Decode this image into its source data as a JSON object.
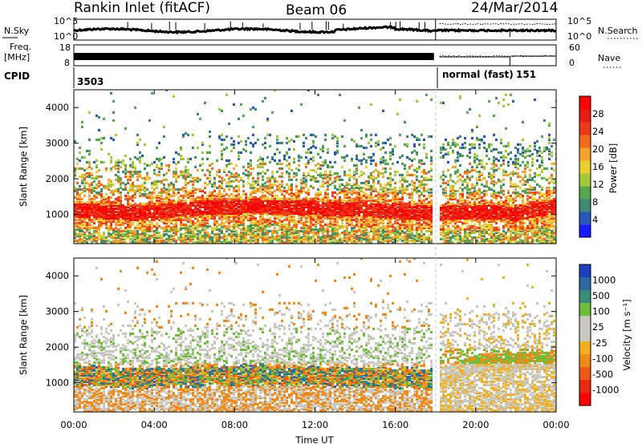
{
  "chart_data": {
    "type": "heatmap",
    "title": {
      "left": "Rankin Inlet (fitACF)",
      "center": "Beam 06",
      "right": "24/Mar/2014"
    },
    "xlabel": "Time UT",
    "xticks": [
      "00:00",
      "04:00",
      "08:00",
      "12:00",
      "16:00",
      "20:00",
      "00:00"
    ],
    "xrange_hours": [
      0,
      24
    ],
    "header": {
      "nsky": {
        "label": "N.Sky",
        "ticks": [
          "10^5",
          "10^0"
        ]
      },
      "nsearch": {
        "label": "N.Search",
        "ticks": [
          "10^5",
          "10^0"
        ]
      },
      "freq": {
        "label": "Freq.",
        "unit": "[MHz]",
        "ticks": [
          "18",
          "8"
        ]
      },
      "nave": {
        "label": "Nave",
        "ticks": [
          "60",
          "0"
        ]
      },
      "cpid": {
        "label": "CPID",
        "segments": [
          "3503",
          "normal (fast)",
          "151"
        ],
        "change_hour": 18.0
      }
    },
    "panels": [
      {
        "name": "power",
        "ylabel": "Slant Range [km]",
        "yticks": [
          "1000",
          "2000",
          "3000",
          "4000"
        ],
        "ylim_km": [
          180,
          4500
        ],
        "colorbar": {
          "label": "Power [dB]",
          "ticks": [
            "4",
            "8",
            "12",
            "16",
            "20",
            "24",
            "28"
          ],
          "colors": [
            "#1a1aff",
            "#2a58b8",
            "#3f8a72",
            "#55a84e",
            "#a5c83a",
            "#e7d030",
            "#f5a32a",
            "#f36a1e",
            "#ee3a16",
            "#e61c10",
            "#ff0000"
          ]
        }
      },
      {
        "name": "velocity",
        "ylabel": "Slant Range [km]",
        "yticks": [
          "1000",
          "2000",
          "3000",
          "4000"
        ],
        "ylim_km": [
          180,
          4500
        ],
        "colorbar": {
          "label": "Velocity [m s⁻¹]",
          "ticks": [
            "1000",
            "500",
            "100",
            "25",
            "-25",
            "-100",
            "-500",
            "-1000"
          ],
          "colors": [
            "#1e40c0",
            "#2a6aa0",
            "#3a8e78",
            "#6fbe3a",
            "#c8c8c0",
            "#c8c8c0",
            "#f2b020",
            "#f08a18",
            "#ec5a14",
            "#e82a10",
            "#ff0000"
          ]
        }
      }
    ],
    "series_description_points": [
      {
        "panel": "power",
        "hours": [
          0,
          3,
          6,
          9,
          12,
          15,
          18,
          20,
          22,
          24
        ],
        "main_band_km": [
          1100,
          1000,
          1150,
          1200,
          1150,
          1100,
          1000,
          1050,
          1000,
          1200
        ]
      },
      {
        "panel": "velocity",
        "hours": [
          0,
          3,
          6,
          9,
          12,
          15,
          18,
          20,
          22,
          24
        ],
        "main_band_km": [
          1200,
          1100,
          1150,
          1200,
          1150,
          1100,
          1100,
          1500,
          1550,
          1600
        ]
      }
    ]
  }
}
